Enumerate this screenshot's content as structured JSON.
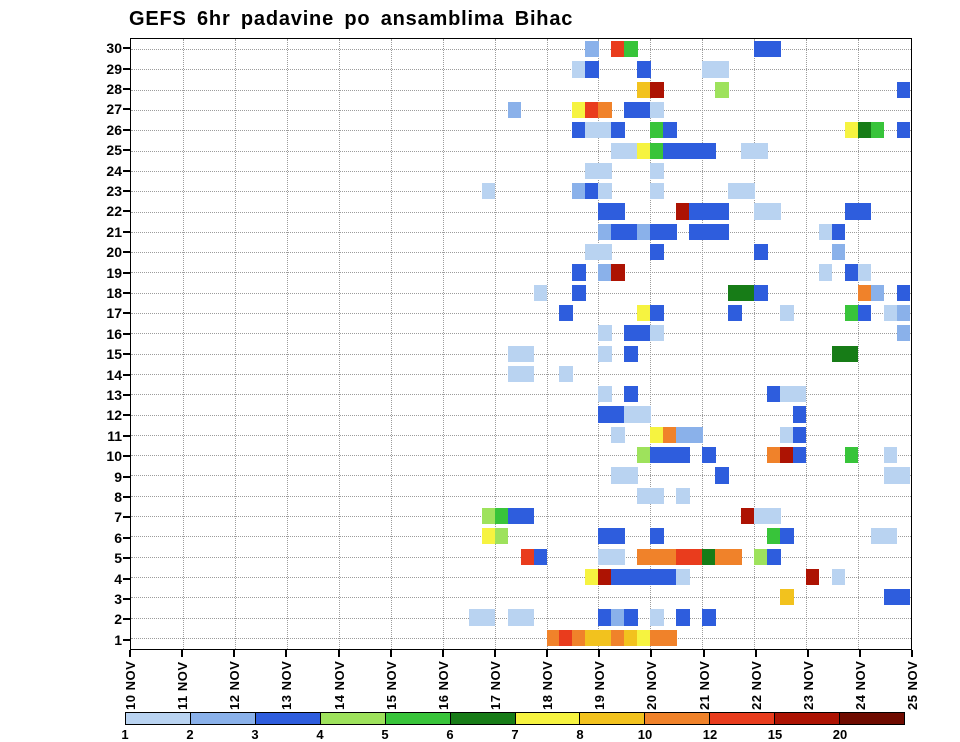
{
  "chart_data": {
    "type": "heatmap",
    "title": "GEFS 6hr padavine po ansamblima Bihac",
    "x_axis": {
      "labels": [
        "10 NOV",
        "11 NOV",
        "12 NOV",
        "13 NOV",
        "14 NOV",
        "15 NOV",
        "16 NOV",
        "17 NOV",
        "18 NOV",
        "19 NOV",
        "20 NOV",
        "21 NOV",
        "22 NOV",
        "23 NOV",
        "24 NOV",
        "25 NOV"
      ],
      "steps_per_day": 4,
      "total_steps": 60
    },
    "y_axis": {
      "labels": [
        "1",
        "2",
        "3",
        "4",
        "5",
        "6",
        "7",
        "8",
        "9",
        "10",
        "11",
        "12",
        "13",
        "14",
        "15",
        "16",
        "17",
        "18",
        "19",
        "20",
        "21",
        "22",
        "23",
        "24",
        "25",
        "26",
        "27",
        "28",
        "29",
        "30"
      ],
      "min": 1,
      "max": 30
    },
    "colorbar": {
      "labels": [
        "1",
        "2",
        "3",
        "4",
        "5",
        "6",
        "7",
        "8",
        "10",
        "12",
        "15",
        "20"
      ],
      "colors": [
        "#b9d3f1",
        "#8ab1ea",
        "#2e5ddd",
        "#9ee25c",
        "#38c43a",
        "#177c17",
        "#f6f340",
        "#f2c21e",
        "#f0822a",
        "#e93c1d",
        "#ad1303",
        "#6f0b00"
      ]
    },
    "cell_format": "[ensemble_member, time_step_6hr_from_10NOV, color_class_1to12]",
    "cells": [
      [
        30,
        35,
        2
      ],
      [
        30,
        37,
        10
      ],
      [
        30,
        38,
        5
      ],
      [
        30,
        48,
        3
      ],
      [
        30,
        49,
        3
      ],
      [
        29,
        34,
        1
      ],
      [
        29,
        35,
        3
      ],
      [
        29,
        39,
        3
      ],
      [
        29,
        44,
        1
      ],
      [
        29,
        45,
        1
      ],
      [
        28,
        39,
        8
      ],
      [
        28,
        40,
        11
      ],
      [
        28,
        45,
        4
      ],
      [
        28,
        59,
        3
      ],
      [
        27,
        29,
        2
      ],
      [
        27,
        34,
        7
      ],
      [
        27,
        35,
        10
      ],
      [
        27,
        36,
        9
      ],
      [
        27,
        38,
        3
      ],
      [
        27,
        39,
        3
      ],
      [
        27,
        40,
        1
      ],
      [
        26,
        34,
        3
      ],
      [
        26,
        35,
        1
      ],
      [
        26,
        36,
        1
      ],
      [
        26,
        37,
        3
      ],
      [
        26,
        40,
        5
      ],
      [
        26,
        41,
        3
      ],
      [
        26,
        55,
        7
      ],
      [
        26,
        56,
        6
      ],
      [
        26,
        57,
        5
      ],
      [
        26,
        59,
        3
      ],
      [
        25,
        37,
        1
      ],
      [
        25,
        38,
        1
      ],
      [
        25,
        39,
        7
      ],
      [
        25,
        40,
        5
      ],
      [
        25,
        41,
        3
      ],
      [
        25,
        42,
        3
      ],
      [
        25,
        43,
        3
      ],
      [
        25,
        44,
        3
      ],
      [
        25,
        47,
        1
      ],
      [
        25,
        48,
        1
      ],
      [
        24,
        35,
        1
      ],
      [
        24,
        36,
        1
      ],
      [
        24,
        40,
        1
      ],
      [
        23,
        27,
        1
      ],
      [
        23,
        34,
        2
      ],
      [
        23,
        35,
        3
      ],
      [
        23,
        36,
        1
      ],
      [
        23,
        40,
        1
      ],
      [
        23,
        46,
        1
      ],
      [
        23,
        47,
        1
      ],
      [
        22,
        36,
        3
      ],
      [
        22,
        37,
        3
      ],
      [
        22,
        42,
        11
      ],
      [
        22,
        43,
        3
      ],
      [
        22,
        44,
        3
      ],
      [
        22,
        45,
        3
      ],
      [
        22,
        48,
        1
      ],
      [
        22,
        49,
        1
      ],
      [
        22,
        55,
        3
      ],
      [
        22,
        56,
        3
      ],
      [
        21,
        36,
        2
      ],
      [
        21,
        37,
        3
      ],
      [
        21,
        38,
        3
      ],
      [
        21,
        39,
        2
      ],
      [
        21,
        40,
        3
      ],
      [
        21,
        41,
        3
      ],
      [
        21,
        43,
        3
      ],
      [
        21,
        44,
        3
      ],
      [
        21,
        45,
        3
      ],
      [
        21,
        53,
        1
      ],
      [
        21,
        54,
        3
      ],
      [
        20,
        35,
        1
      ],
      [
        20,
        36,
        1
      ],
      [
        20,
        40,
        3
      ],
      [
        20,
        48,
        3
      ],
      [
        20,
        54,
        2
      ],
      [
        19,
        34,
        3
      ],
      [
        19,
        36,
        2
      ],
      [
        19,
        37,
        11
      ],
      [
        19,
        53,
        1
      ],
      [
        19,
        55,
        3
      ],
      [
        19,
        56,
        1
      ],
      [
        18,
        31,
        1
      ],
      [
        18,
        34,
        3
      ],
      [
        18,
        46,
        6
      ],
      [
        18,
        47,
        6
      ],
      [
        18,
        48,
        3
      ],
      [
        18,
        56,
        9
      ],
      [
        18,
        57,
        2
      ],
      [
        18,
        59,
        3
      ],
      [
        17,
        33,
        3
      ],
      [
        17,
        39,
        7
      ],
      [
        17,
        40,
        3
      ],
      [
        17,
        46,
        3
      ],
      [
        17,
        50,
        1
      ],
      [
        17,
        55,
        5
      ],
      [
        17,
        56,
        3
      ],
      [
        17,
        58,
        1
      ],
      [
        17,
        59,
        2
      ],
      [
        16,
        36,
        1
      ],
      [
        16,
        38,
        3
      ],
      [
        16,
        39,
        3
      ],
      [
        16,
        40,
        1
      ],
      [
        16,
        59,
        2
      ],
      [
        15,
        29,
        1
      ],
      [
        15,
        30,
        1
      ],
      [
        15,
        36,
        1
      ],
      [
        15,
        38,
        3
      ],
      [
        15,
        54,
        6
      ],
      [
        15,
        55,
        6
      ],
      [
        14,
        29,
        1
      ],
      [
        14,
        30,
        1
      ],
      [
        14,
        33,
        1
      ],
      [
        13,
        36,
        1
      ],
      [
        13,
        38,
        3
      ],
      [
        13,
        49,
        3
      ],
      [
        13,
        50,
        1
      ],
      [
        13,
        51,
        1
      ],
      [
        12,
        36,
        3
      ],
      [
        12,
        37,
        3
      ],
      [
        12,
        38,
        1
      ],
      [
        12,
        39,
        1
      ],
      [
        12,
        51,
        3
      ],
      [
        11,
        37,
        1
      ],
      [
        11,
        40,
        7
      ],
      [
        11,
        41,
        9
      ],
      [
        11,
        42,
        2
      ],
      [
        11,
        43,
        2
      ],
      [
        11,
        50,
        1
      ],
      [
        11,
        51,
        3
      ],
      [
        10,
        39,
        4
      ],
      [
        10,
        40,
        3
      ],
      [
        10,
        41,
        3
      ],
      [
        10,
        42,
        3
      ],
      [
        10,
        44,
        3
      ],
      [
        10,
        49,
        9
      ],
      [
        10,
        50,
        11
      ],
      [
        10,
        51,
        3
      ],
      [
        10,
        55,
        5
      ],
      [
        10,
        58,
        1
      ],
      [
        9,
        37,
        1
      ],
      [
        9,
        38,
        1
      ],
      [
        9,
        45,
        3
      ],
      [
        9,
        58,
        1
      ],
      [
        9,
        59,
        1
      ],
      [
        8,
        39,
        1
      ],
      [
        8,
        40,
        1
      ],
      [
        8,
        42,
        1
      ],
      [
        7,
        27,
        4
      ],
      [
        7,
        28,
        5
      ],
      [
        7,
        29,
        3
      ],
      [
        7,
        30,
        3
      ],
      [
        7,
        47,
        11
      ],
      [
        7,
        48,
        1
      ],
      [
        7,
        49,
        1
      ],
      [
        6,
        27,
        7
      ],
      [
        6,
        28,
        4
      ],
      [
        6,
        36,
        3
      ],
      [
        6,
        37,
        3
      ],
      [
        6,
        40,
        3
      ],
      [
        6,
        49,
        5
      ],
      [
        6,
        50,
        3
      ],
      [
        6,
        57,
        1
      ],
      [
        6,
        58,
        1
      ],
      [
        5,
        30,
        10
      ],
      [
        5,
        31,
        3
      ],
      [
        5,
        36,
        1
      ],
      [
        5,
        37,
        1
      ],
      [
        5,
        39,
        9
      ],
      [
        5,
        40,
        9
      ],
      [
        5,
        41,
        9
      ],
      [
        5,
        42,
        10
      ],
      [
        5,
        43,
        10
      ],
      [
        5,
        44,
        6
      ],
      [
        5,
        45,
        9
      ],
      [
        5,
        46,
        9
      ],
      [
        5,
        48,
        4
      ],
      [
        5,
        49,
        3
      ],
      [
        4,
        35,
        7
      ],
      [
        4,
        36,
        11
      ],
      [
        4,
        37,
        3
      ],
      [
        4,
        38,
        3
      ],
      [
        4,
        39,
        3
      ],
      [
        4,
        40,
        3
      ],
      [
        4,
        41,
        3
      ],
      [
        4,
        42,
        1
      ],
      [
        4,
        52,
        11
      ],
      [
        4,
        54,
        1
      ],
      [
        3,
        50,
        8
      ],
      [
        3,
        58,
        3
      ],
      [
        3,
        59,
        3
      ],
      [
        2,
        26,
        1
      ],
      [
        2,
        27,
        1
      ],
      [
        2,
        29,
        1
      ],
      [
        2,
        30,
        1
      ],
      [
        2,
        36,
        3
      ],
      [
        2,
        37,
        2
      ],
      [
        2,
        38,
        3
      ],
      [
        2,
        40,
        1
      ],
      [
        2,
        42,
        3
      ],
      [
        2,
        44,
        3
      ],
      [
        1,
        32,
        9
      ],
      [
        1,
        33,
        10
      ],
      [
        1,
        34,
        9
      ],
      [
        1,
        35,
        8
      ],
      [
        1,
        36,
        8
      ],
      [
        1,
        37,
        9
      ],
      [
        1,
        38,
        8
      ],
      [
        1,
        39,
        7
      ],
      [
        1,
        40,
        9
      ],
      [
        1,
        41,
        9
      ]
    ],
    "grid": "dotted",
    "legend_position": "bottom"
  }
}
